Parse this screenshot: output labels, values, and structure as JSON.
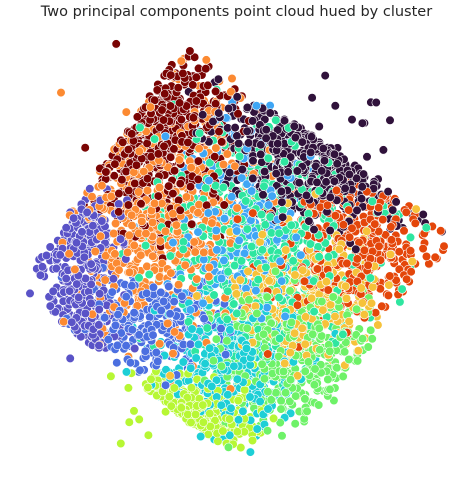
{
  "title": "Two principal components point cloud hued by cluster",
  "chart_data": {
    "type": "scatter",
    "title": "Two principal components point cloud hued by cluster",
    "xlabel": "",
    "ylabel": "",
    "axes_visible": false,
    "grid": false,
    "legend": "none",
    "marker_edge_color": "#ffffff",
    "palette_name": "turbo",
    "xlim": [
      -1.0,
      1.0
    ],
    "ylim": [
      -1.0,
      1.0
    ],
    "point_count_estimate": 6000,
    "clusters": [
      {
        "id": 0,
        "color": "#30123b",
        "center": [
          0.42,
          0.5
        ],
        "spread": [
          0.22,
          0.16
        ],
        "n": 600
      },
      {
        "id": 1,
        "color": "#5a53c7",
        "center": [
          -0.72,
          -0.08
        ],
        "spread": [
          0.09,
          0.25
        ],
        "n": 350
      },
      {
        "id": 2,
        "color": "#4b6fe0",
        "center": [
          -0.38,
          -0.28
        ],
        "spread": [
          0.18,
          0.1
        ],
        "n": 300
      },
      {
        "id": 3,
        "color": "#3fa6f5",
        "center": [
          0.02,
          0.2
        ],
        "spread": [
          0.16,
          0.22
        ],
        "n": 250
      },
      {
        "id": 4,
        "color": "#1dcfd6",
        "center": [
          -0.02,
          -0.5
        ],
        "spread": [
          0.18,
          0.18
        ],
        "n": 400
      },
      {
        "id": 5,
        "color": "#2ee6a0",
        "center": [
          0.1,
          0.1
        ],
        "spread": [
          0.26,
          0.26
        ],
        "n": 600
      },
      {
        "id": 6,
        "color": "#6ef268",
        "center": [
          0.28,
          -0.45
        ],
        "spread": [
          0.18,
          0.18
        ],
        "n": 400
      },
      {
        "id": 7,
        "color": "#b7f734",
        "center": [
          -0.34,
          -0.72
        ],
        "spread": [
          0.16,
          0.08
        ],
        "n": 350
      },
      {
        "id": 8,
        "color": "#f6c23a",
        "center": [
          0.3,
          -0.15
        ],
        "spread": [
          0.18,
          0.18
        ],
        "n": 350
      },
      {
        "id": 9,
        "color": "#fc8a32",
        "center": [
          -0.38,
          0.25
        ],
        "spread": [
          0.22,
          0.32
        ],
        "n": 600
      },
      {
        "id": 10,
        "color": "#e4460a",
        "center": [
          0.56,
          0.05
        ],
        "spread": [
          0.18,
          0.15
        ],
        "n": 400
      },
      {
        "id": 11,
        "color": "#7a0403",
        "center": [
          -0.42,
          0.6
        ],
        "spread": [
          0.18,
          0.22
        ],
        "n": 500
      }
    ]
  }
}
